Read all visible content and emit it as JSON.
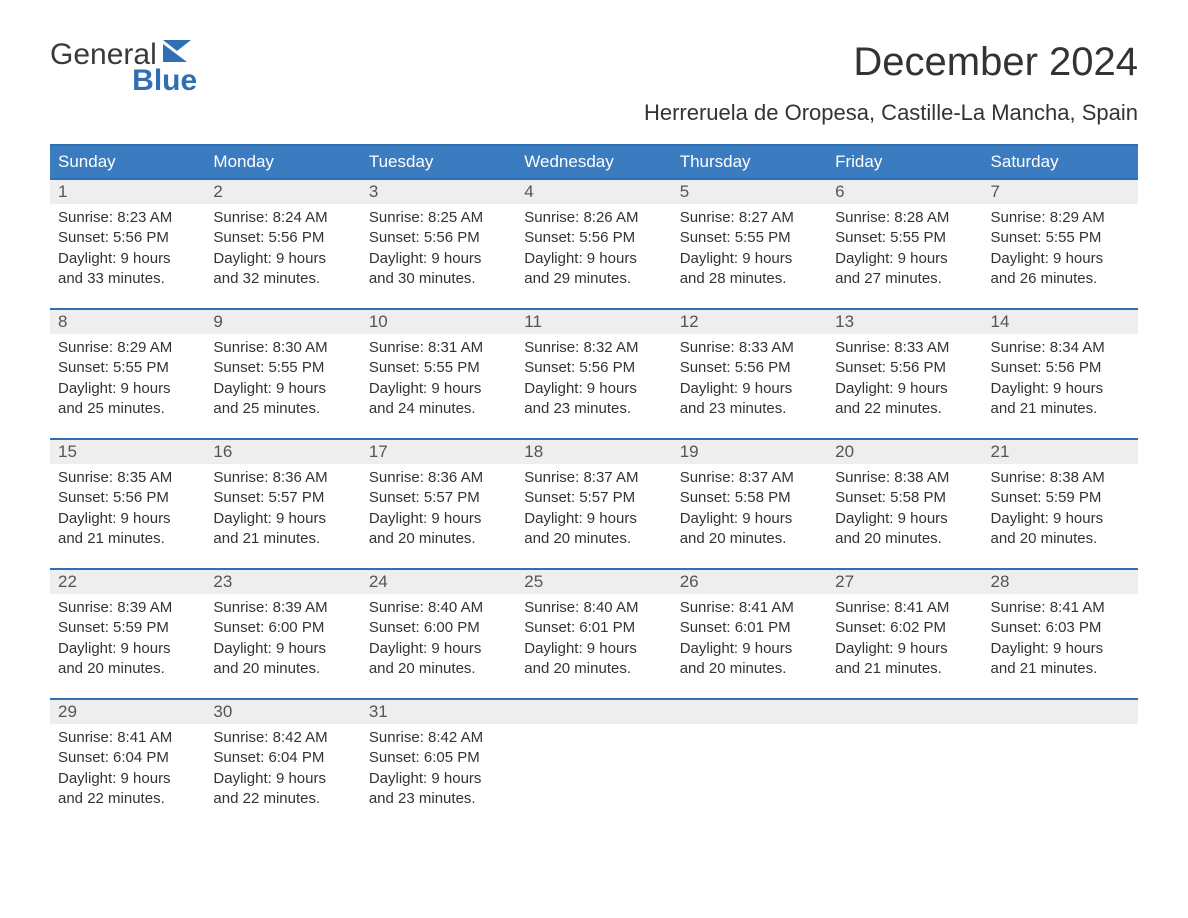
{
  "logo": {
    "general": "General",
    "blue": "Blue",
    "flag_color": "#2f6fb3"
  },
  "title": "December 2024",
  "location": "Herreruela de Oropesa, Castille-La Mancha, Spain",
  "colors": {
    "header_bg": "#3b7bbf",
    "header_text": "#ffffff",
    "week_border": "#2f6fb3",
    "daynum_bg": "#eeeeee",
    "body_text": "#333333"
  },
  "day_names": [
    "Sunday",
    "Monday",
    "Tuesday",
    "Wednesday",
    "Thursday",
    "Friday",
    "Saturday"
  ],
  "weeks": [
    [
      {
        "n": "1",
        "sunrise": "8:23 AM",
        "sunset": "5:56 PM",
        "daylight": "9 hours and 33 minutes."
      },
      {
        "n": "2",
        "sunrise": "8:24 AM",
        "sunset": "5:56 PM",
        "daylight": "9 hours and 32 minutes."
      },
      {
        "n": "3",
        "sunrise": "8:25 AM",
        "sunset": "5:56 PM",
        "daylight": "9 hours and 30 minutes."
      },
      {
        "n": "4",
        "sunrise": "8:26 AM",
        "sunset": "5:56 PM",
        "daylight": "9 hours and 29 minutes."
      },
      {
        "n": "5",
        "sunrise": "8:27 AM",
        "sunset": "5:55 PM",
        "daylight": "9 hours and 28 minutes."
      },
      {
        "n": "6",
        "sunrise": "8:28 AM",
        "sunset": "5:55 PM",
        "daylight": "9 hours and 27 minutes."
      },
      {
        "n": "7",
        "sunrise": "8:29 AM",
        "sunset": "5:55 PM",
        "daylight": "9 hours and 26 minutes."
      }
    ],
    [
      {
        "n": "8",
        "sunrise": "8:29 AM",
        "sunset": "5:55 PM",
        "daylight": "9 hours and 25 minutes."
      },
      {
        "n": "9",
        "sunrise": "8:30 AM",
        "sunset": "5:55 PM",
        "daylight": "9 hours and 25 minutes."
      },
      {
        "n": "10",
        "sunrise": "8:31 AM",
        "sunset": "5:55 PM",
        "daylight": "9 hours and 24 minutes."
      },
      {
        "n": "11",
        "sunrise": "8:32 AM",
        "sunset": "5:56 PM",
        "daylight": "9 hours and 23 minutes."
      },
      {
        "n": "12",
        "sunrise": "8:33 AM",
        "sunset": "5:56 PM",
        "daylight": "9 hours and 23 minutes."
      },
      {
        "n": "13",
        "sunrise": "8:33 AM",
        "sunset": "5:56 PM",
        "daylight": "9 hours and 22 minutes."
      },
      {
        "n": "14",
        "sunrise": "8:34 AM",
        "sunset": "5:56 PM",
        "daylight": "9 hours and 21 minutes."
      }
    ],
    [
      {
        "n": "15",
        "sunrise": "8:35 AM",
        "sunset": "5:56 PM",
        "daylight": "9 hours and 21 minutes."
      },
      {
        "n": "16",
        "sunrise": "8:36 AM",
        "sunset": "5:57 PM",
        "daylight": "9 hours and 21 minutes."
      },
      {
        "n": "17",
        "sunrise": "8:36 AM",
        "sunset": "5:57 PM",
        "daylight": "9 hours and 20 minutes."
      },
      {
        "n": "18",
        "sunrise": "8:37 AM",
        "sunset": "5:57 PM",
        "daylight": "9 hours and 20 minutes."
      },
      {
        "n": "19",
        "sunrise": "8:37 AM",
        "sunset": "5:58 PM",
        "daylight": "9 hours and 20 minutes."
      },
      {
        "n": "20",
        "sunrise": "8:38 AM",
        "sunset": "5:58 PM",
        "daylight": "9 hours and 20 minutes."
      },
      {
        "n": "21",
        "sunrise": "8:38 AM",
        "sunset": "5:59 PM",
        "daylight": "9 hours and 20 minutes."
      }
    ],
    [
      {
        "n": "22",
        "sunrise": "8:39 AM",
        "sunset": "5:59 PM",
        "daylight": "9 hours and 20 minutes."
      },
      {
        "n": "23",
        "sunrise": "8:39 AM",
        "sunset": "6:00 PM",
        "daylight": "9 hours and 20 minutes."
      },
      {
        "n": "24",
        "sunrise": "8:40 AM",
        "sunset": "6:00 PM",
        "daylight": "9 hours and 20 minutes."
      },
      {
        "n": "25",
        "sunrise": "8:40 AM",
        "sunset": "6:01 PM",
        "daylight": "9 hours and 20 minutes."
      },
      {
        "n": "26",
        "sunrise": "8:41 AM",
        "sunset": "6:01 PM",
        "daylight": "9 hours and 20 minutes."
      },
      {
        "n": "27",
        "sunrise": "8:41 AM",
        "sunset": "6:02 PM",
        "daylight": "9 hours and 21 minutes."
      },
      {
        "n": "28",
        "sunrise": "8:41 AM",
        "sunset": "6:03 PM",
        "daylight": "9 hours and 21 minutes."
      }
    ],
    [
      {
        "n": "29",
        "sunrise": "8:41 AM",
        "sunset": "6:04 PM",
        "daylight": "9 hours and 22 minutes."
      },
      {
        "n": "30",
        "sunrise": "8:42 AM",
        "sunset": "6:04 PM",
        "daylight": "9 hours and 22 minutes."
      },
      {
        "n": "31",
        "sunrise": "8:42 AM",
        "sunset": "6:05 PM",
        "daylight": "9 hours and 23 minutes."
      },
      {
        "empty": true
      },
      {
        "empty": true
      },
      {
        "empty": true
      },
      {
        "empty": true
      }
    ]
  ],
  "labels": {
    "sunrise": "Sunrise: ",
    "sunset": "Sunset: ",
    "daylight": "Daylight: "
  }
}
